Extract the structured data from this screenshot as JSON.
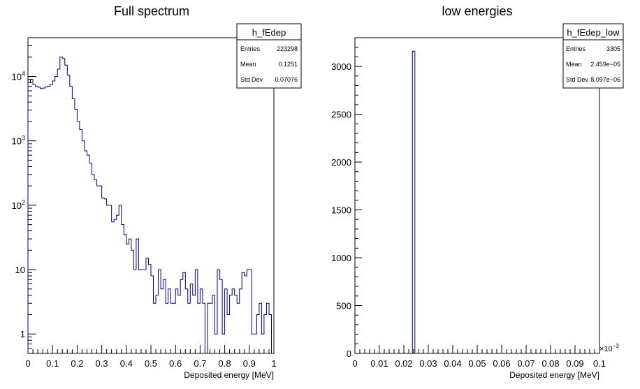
{
  "chart_data": [
    {
      "type": "histogram",
      "title": "Full spectrum",
      "xlabel": "Deposited energy [MeV]",
      "ylabel": "",
      "xlim": [
        0,
        1
      ],
      "ylim": [
        0.5,
        40000
      ],
      "log_y": true,
      "line_color": "#000080",
      "bin_width": 0.01,
      "x_ticks": [
        "0",
        "0.1",
        "0.2",
        "0.3",
        "0.4",
        "0.5",
        "0.6",
        "0.7",
        "0.8",
        "0.9",
        "1"
      ],
      "y_ticks": [
        {
          "base": "1",
          "exp": ""
        },
        {
          "base": "10",
          "exp": ""
        },
        {
          "base": "10",
          "exp": "2"
        },
        {
          "base": "10",
          "exp": "3"
        },
        {
          "base": "10",
          "exp": "4"
        }
      ],
      "values": [
        8000,
        9000,
        7500,
        7000,
        6800,
        6500,
        6600,
        6900,
        7000,
        7500,
        8500,
        10000,
        13000,
        20000,
        19000,
        15000,
        10500,
        7000,
        4500,
        3100,
        2000,
        1500,
        1000,
        700,
        600,
        450,
        300,
        250,
        200,
        200,
        130,
        125,
        100,
        100,
        55,
        60,
        70,
        100,
        50,
        35,
        25,
        30,
        20,
        10,
        30,
        10,
        10,
        10,
        15,
        12,
        8,
        3,
        4,
        10,
        5,
        7,
        3,
        5,
        3,
        3,
        5,
        4,
        7,
        9,
        5,
        3,
        6,
        4,
        10,
        3,
        5,
        3,
        0.5,
        3,
        3,
        4,
        1,
        10,
        7,
        1,
        5,
        2,
        4,
        5,
        4,
        3,
        5,
        9,
        8,
        10,
        10,
        1,
        1,
        2,
        3,
        1,
        2,
        3,
        2,
        0
      ],
      "stats": {
        "name": "h_fEdep",
        "rows": [
          {
            "label": "Entries",
            "value": "223298"
          },
          {
            "label": "Mean",
            "value": "0.1251"
          },
          {
            "label": "Std Dev",
            "value": "0.07076"
          }
        ]
      }
    },
    {
      "type": "histogram",
      "title": "low energies",
      "xlabel": "Deposited energy [MeV]",
      "ylabel": "",
      "xlim": [
        0,
        0.0001
      ],
      "ylim": [
        0,
        3300
      ],
      "log_y": false,
      "line_color": "#000080",
      "x_ticks": [
        "0",
        "0.01",
        "0.02",
        "0.03",
        "0.04",
        "0.05",
        "0.06",
        "0.07",
        "0.08",
        "0.09",
        "0.1"
      ],
      "x_multiplier": {
        "base": "×10",
        "exp": "−3"
      },
      "y_ticks": [
        "0",
        "500",
        "1000",
        "1500",
        "2000",
        "2500",
        "3000"
      ],
      "spike": {
        "x_from": 2.35e-05,
        "x_to": 2.45e-05,
        "value": 3160
      },
      "stats": {
        "name": "h_fEdep_low",
        "rows": [
          {
            "label": "Entries",
            "value": "3305"
          },
          {
            "label": "Mean",
            "value": "2.459e−05"
          },
          {
            "label": "Std Dev",
            "value": "8.097e−06"
          }
        ]
      }
    }
  ]
}
